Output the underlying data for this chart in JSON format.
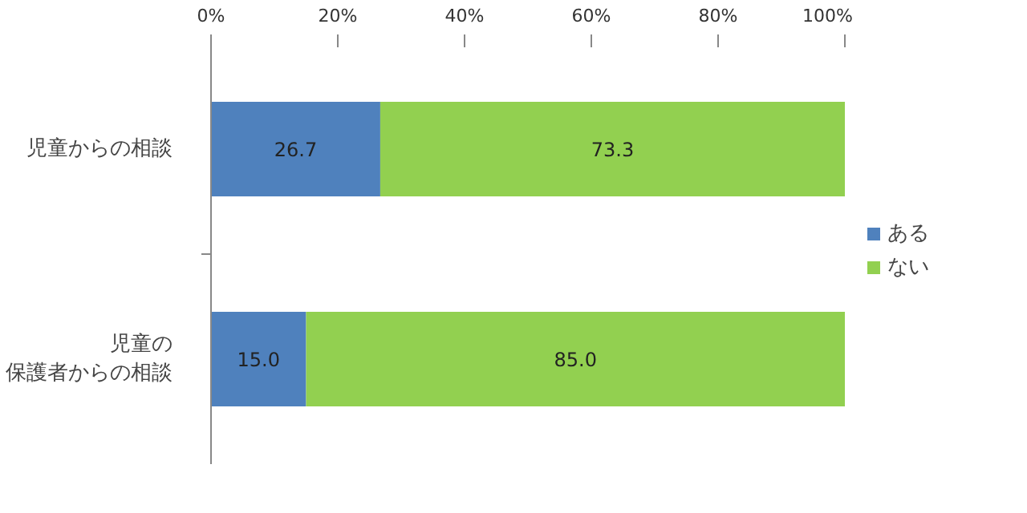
{
  "chart_data": {
    "type": "bar",
    "orientation": "horizontal",
    "stacked": true,
    "categories": [
      "児童からの相談",
      "児童の保護者からの相談"
    ],
    "series": [
      {
        "name": "ある",
        "color": "#4f81bd",
        "values": [
          26.7,
          15.0
        ],
        "value_labels": [
          "26.7",
          "15.0"
        ]
      },
      {
        "name": "ない",
        "color": "#92d050",
        "values": [
          73.3,
          85.0
        ],
        "value_labels": [
          "73.3",
          "85.0"
        ]
      }
    ],
    "xlim": [
      0,
      100
    ],
    "xticks": [
      {
        "value": 0,
        "label": "0%"
      },
      {
        "value": 20,
        "label": "20%"
      },
      {
        "value": 40,
        "label": "40%"
      },
      {
        "value": 60,
        "label": "60%"
      },
      {
        "value": 80,
        "label": "80%"
      },
      {
        "value": 100,
        "label": "100%"
      }
    ],
    "grid": false,
    "legend": "right"
  }
}
